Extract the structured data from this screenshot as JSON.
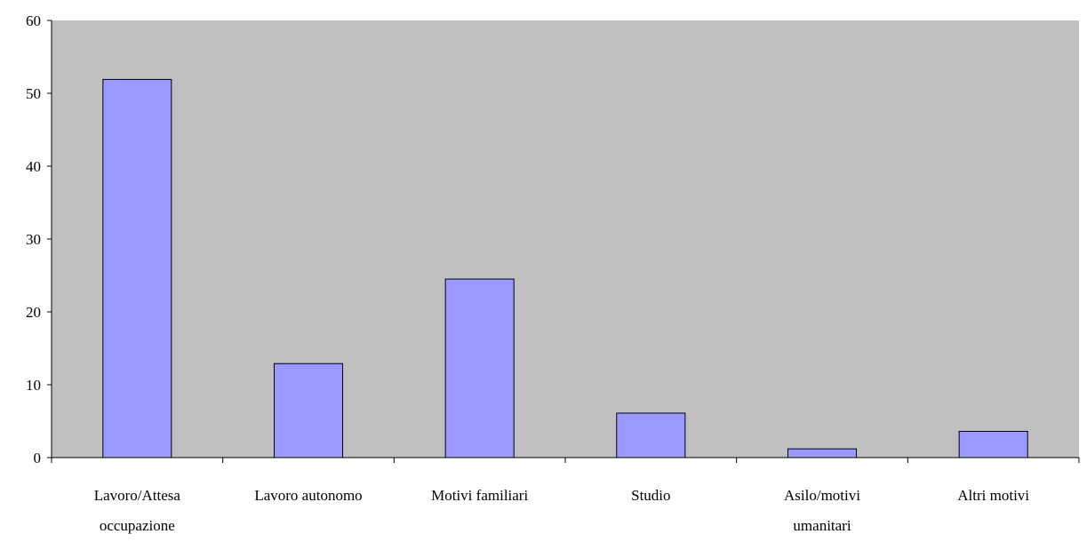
{
  "chart_data": {
    "type": "bar",
    "categories": [
      [
        "Lavoro/Attesa",
        "occupazione"
      ],
      [
        "Lavoro autonomo"
      ],
      [
        "Motivi familiari"
      ],
      [
        "Studio"
      ],
      [
        "Asilo/motivi",
        "umanitari"
      ],
      [
        "Altri motivi"
      ]
    ],
    "values": [
      51.9,
      12.9,
      24.5,
      6.1,
      1.2,
      3.6
    ],
    "yticks": [
      "0",
      "10",
      "20",
      "30",
      "40",
      "50",
      "60"
    ],
    "ylim": [
      0,
      60
    ],
    "title": "",
    "xlabel": "",
    "ylabel": "",
    "grid": false,
    "colors": {
      "plot_background": "#c0c0c0",
      "bar_fill": "#9999ff",
      "bar_stroke": "#000000",
      "axis": "#000000"
    }
  }
}
